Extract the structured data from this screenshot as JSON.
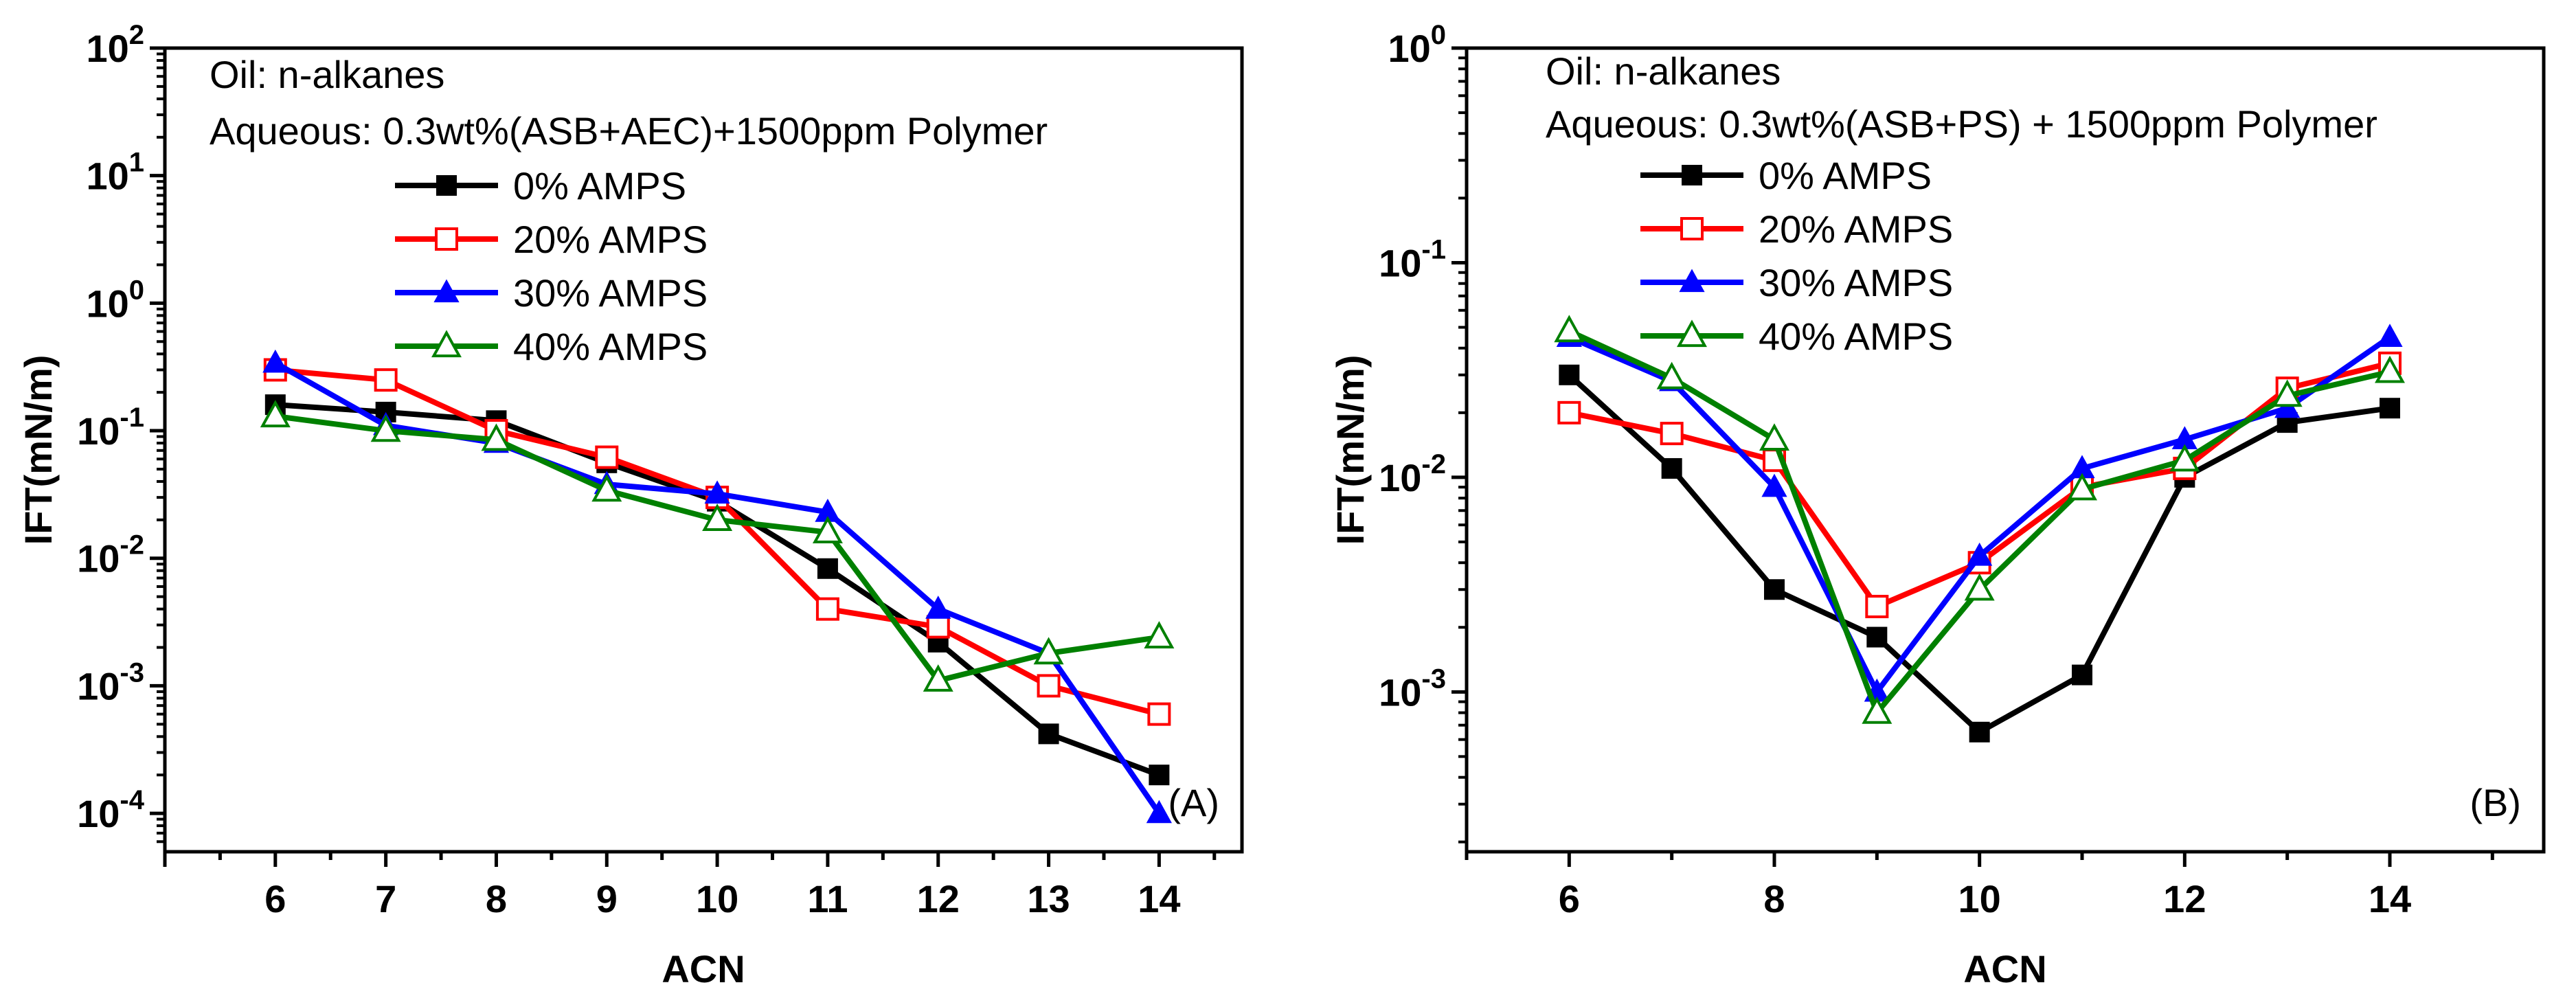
{
  "colors": {
    "black": "#000000",
    "red": "#ff0000",
    "blue": "#0000ff",
    "green": "#008000"
  },
  "chart_data": [
    {
      "type": "line",
      "panel_label": "(A)",
      "xlabel": "ACN",
      "ylabel": "IFT(mN/m)",
      "yscale": "log",
      "ylim": [
        5e-05,
        100
      ],
      "xlim": [
        5,
        14.75
      ],
      "xticks": [
        6,
        7,
        8,
        9,
        10,
        11,
        12,
        13,
        14
      ],
      "yticks": [
        {
          "value": 0.0001,
          "base": "10",
          "exp": "-4"
        },
        {
          "value": 0.001,
          "base": "10",
          "exp": "-3"
        },
        {
          "value": 0.01,
          "base": "10",
          "exp": "-2"
        },
        {
          "value": 0.1,
          "base": "10",
          "exp": "-1"
        },
        {
          "value": 1,
          "base": "10",
          "exp": "0"
        },
        {
          "value": 10,
          "base": "10",
          "exp": "1"
        },
        {
          "value": 100,
          "base": "10",
          "exp": "2"
        }
      ],
      "annotations": [
        "Oil: n-alkanes",
        "Aqueous: 0.3wt%(ASB+AEC)+1500ppm Polymer"
      ],
      "series": [
        {
          "name": "0% AMPS",
          "color": "black",
          "marker": "square-filled",
          "x": [
            6,
            7,
            8,
            9,
            10,
            11,
            12,
            13,
            14
          ],
          "y": [
            0.16,
            0.14,
            0.12,
            0.056,
            0.028,
            0.0083,
            0.0022,
            0.00042,
            0.0002
          ]
        },
        {
          "name": "20% AMPS",
          "color": "red",
          "marker": "square-open",
          "x": [
            6,
            7,
            8,
            9,
            10,
            11,
            12,
            13,
            14
          ],
          "y": [
            0.3,
            0.25,
            0.1,
            0.062,
            0.03,
            0.004,
            0.0029,
            0.001,
            0.0006
          ]
        },
        {
          "name": "30% AMPS",
          "color": "blue",
          "marker": "triangle-filled",
          "x": [
            6,
            7,
            8,
            9,
            10,
            11,
            12,
            13,
            14
          ],
          "y": [
            0.34,
            0.11,
            0.08,
            0.038,
            0.032,
            0.023,
            0.004,
            0.0018,
            0.0001
          ]
        },
        {
          "name": "40% AMPS",
          "color": "green",
          "marker": "triangle-open",
          "x": [
            6,
            7,
            8,
            9,
            10,
            11,
            12,
            13,
            14
          ],
          "y": [
            0.13,
            0.1,
            0.085,
            0.034,
            0.02,
            0.016,
            0.0011,
            0.0018,
            0.0024
          ]
        }
      ]
    },
    {
      "type": "line",
      "panel_label": "(B)",
      "xlabel": "ACN",
      "ylabel": "IFT(mN/m)",
      "yscale": "log",
      "ylim": [
        0.00018,
        1
      ],
      "xlim": [
        5,
        15.5
      ],
      "xticks": [
        6,
        8,
        10,
        12,
        14
      ],
      "yticks": [
        {
          "value": 0.001,
          "base": "10",
          "exp": "-3"
        },
        {
          "value": 0.01,
          "base": "10",
          "exp": "-2"
        },
        {
          "value": 0.1,
          "base": "10",
          "exp": "-1"
        },
        {
          "value": 1,
          "base": "10",
          "exp": "0"
        }
      ],
      "annotations": [
        "Oil: n-alkanes",
        "Aqueous: 0.3wt%(ASB+PS) + 1500ppm Polymer"
      ],
      "series": [
        {
          "name": "0% AMPS",
          "color": "black",
          "marker": "square-filled",
          "x": [
            6,
            7,
            8,
            9,
            10,
            11,
            12,
            13,
            14
          ],
          "y": [
            0.03,
            0.011,
            0.003,
            0.0018,
            0.00065,
            0.0012,
            0.01,
            0.018,
            0.021
          ]
        },
        {
          "name": "20% AMPS",
          "color": "red",
          "marker": "square-open",
          "x": [
            6,
            7,
            8,
            9,
            10,
            11,
            12,
            13,
            14
          ],
          "y": [
            0.02,
            0.016,
            0.012,
            0.0025,
            0.004,
            0.009,
            0.011,
            0.026,
            0.034
          ]
        },
        {
          "name": "30% AMPS",
          "color": "blue",
          "marker": "triangle-filled",
          "x": [
            6,
            7,
            8,
            9,
            10,
            11,
            12,
            13,
            14
          ],
          "y": [
            0.045,
            0.028,
            0.009,
            0.001,
            0.0043,
            0.011,
            0.015,
            0.021,
            0.045
          ]
        },
        {
          "name": "40% AMPS",
          "color": "green",
          "marker": "triangle-open",
          "x": [
            6,
            7,
            8,
            9,
            10,
            11,
            12,
            13,
            14
          ],
          "y": [
            0.048,
            0.029,
            0.015,
            0.0008,
            0.003,
            0.0088,
            0.012,
            0.024,
            0.031
          ]
        }
      ]
    }
  ]
}
